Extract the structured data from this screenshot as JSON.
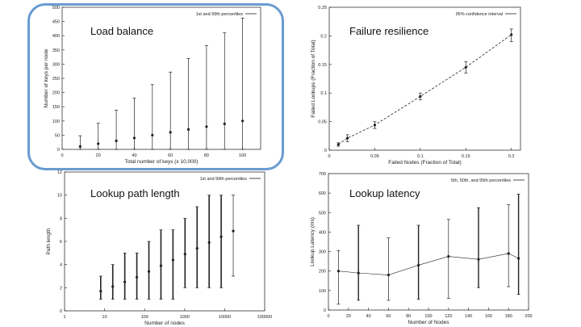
{
  "colors": {
    "highlight_border": "#6a9bd1",
    "axis": "#333333",
    "series": "#222222"
  },
  "charts": [
    {
      "id": "load",
      "caption": "Load balance",
      "chart_data": {
        "type": "scatter",
        "title": "",
        "xlabel": "Total number of keys (x 10,000)",
        "ylabel": "Number of keys per node",
        "legend": "1st and 99th percentiles",
        "legend_position": "top-right",
        "xlim": [
          0,
          110
        ],
        "ylim": [
          0,
          500
        ],
        "xticks": [
          0,
          20,
          40,
          60,
          80,
          100
        ],
        "yticks": [
          0,
          50,
          100,
          150,
          200,
          250,
          300,
          350,
          400,
          450,
          500
        ],
        "x": [
          10,
          20,
          30,
          40,
          50,
          60,
          70,
          80,
          90,
          100
        ],
        "mean": [
          10,
          20,
          30,
          40,
          50,
          60,
          70,
          80,
          90,
          100
        ],
        "low": [
          0,
          0,
          0,
          0,
          0,
          0,
          0,
          0,
          0,
          0
        ],
        "high": [
          48,
          92,
          138,
          180,
          228,
          272,
          320,
          365,
          410,
          462
        ]
      }
    },
    {
      "id": "fail",
      "caption": "Failure resilience",
      "chart_data": {
        "type": "line",
        "title": "",
        "xlabel": "Failed Nodes (Fraction of Total)",
        "ylabel": "Failed Lookups (Fraction of Total)",
        "legend": "95% confidence interval",
        "legend_position": "top-right",
        "xlim": [
          0,
          0.21
        ],
        "ylim": [
          0,
          0.25
        ],
        "xticks": [
          "0",
          "0.05",
          "0.1",
          "0.15",
          "0.2"
        ],
        "xtick_values": [
          0,
          0.05,
          0.1,
          0.15,
          0.2
        ],
        "yticks": [
          "0",
          "0.05",
          "0.1",
          "0.15",
          "0.2",
          "0.25"
        ],
        "ytick_values": [
          0,
          0.05,
          0.1,
          0.15,
          0.2,
          0.25
        ],
        "x": [
          0.01,
          0.02,
          0.05,
          0.1,
          0.15,
          0.2
        ],
        "mean": [
          0.01,
          0.021,
          0.044,
          0.094,
          0.145,
          0.202
        ],
        "low": [
          0.007,
          0.015,
          0.038,
          0.088,
          0.135,
          0.19
        ],
        "high": [
          0.013,
          0.027,
          0.05,
          0.1,
          0.155,
          0.212
        ]
      }
    },
    {
      "id": "path",
      "caption": "Lookup path length",
      "chart_data": {
        "type": "scatter",
        "title": "",
        "xlabel": "Number of nodes",
        "ylabel": "Path length",
        "legend": "1st and 99th percentiles",
        "legend_position": "top-right",
        "xscale": "log",
        "xlim": [
          1,
          100000
        ],
        "ylim": [
          0,
          12
        ],
        "xticks": [
          "1",
          "10",
          "100",
          "1000",
          "10000",
          "100000"
        ],
        "xtick_values": [
          1,
          10,
          100,
          1000,
          10000,
          100000
        ],
        "yticks": [
          0,
          2,
          4,
          6,
          8,
          10,
          12
        ],
        "x": [
          8,
          16,
          32,
          64,
          128,
          256,
          512,
          1024,
          2048,
          4096,
          8192,
          16384
        ],
        "mean": [
          1.7,
          2.1,
          2.5,
          2.9,
          3.4,
          3.9,
          4.4,
          4.9,
          5.4,
          5.9,
          6.4,
          6.9
        ],
        "low": [
          1,
          1,
          1,
          1,
          1,
          1,
          1,
          2,
          2,
          2,
          2,
          3
        ],
        "high": [
          3,
          4,
          5,
          5,
          6,
          7,
          7,
          8,
          9,
          10,
          10,
          10
        ]
      }
    },
    {
      "id": "latency",
      "caption": "Lookup latency",
      "chart_data": {
        "type": "scatter",
        "title": "",
        "xlabel": "Number of Nodes",
        "ylabel": "Lookup Latency (ms)",
        "legend": "5th, 50th, and 95th percentiles",
        "legend_position": "top-right",
        "xlim": [
          0,
          200
        ],
        "ylim": [
          0,
          700
        ],
        "xticks": [
          0,
          20,
          40,
          60,
          80,
          100,
          120,
          140,
          160,
          180,
          200
        ],
        "yticks": [
          0,
          100,
          200,
          300,
          400,
          500,
          600,
          700
        ],
        "x": [
          10,
          30,
          60,
          90,
          120,
          150,
          180,
          190
        ],
        "mean": [
          200,
          190,
          180,
          230,
          275,
          260,
          290,
          265
        ],
        "low": [
          30,
          50,
          50,
          55,
          60,
          115,
          120,
          80
        ],
        "high": [
          305,
          435,
          370,
          435,
          465,
          525,
          540,
          595
        ]
      }
    }
  ]
}
